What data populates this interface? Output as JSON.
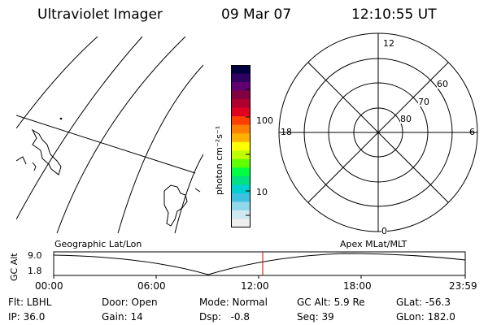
{
  "header": {
    "title": "Ultraviolet Imager",
    "date": "09 Mar 07",
    "time": "12:10:55 UT"
  },
  "colorbar": {
    "unit": "photon cm⁻²s⁻¹",
    "tick_100": "100",
    "tick_10": "10",
    "colors": [
      "#000040",
      "#300060",
      "#600070",
      "#800040",
      "#b00030",
      "#e00020",
      "#ff4000",
      "#ff8000",
      "#ffb000",
      "#ffff00",
      "#c0ff00",
      "#60ff00",
      "#00ff40",
      "#00e080",
      "#00d0d0",
      "#40c0e0",
      "#90d8e8",
      "#d0e8f0",
      "#eeeeee"
    ]
  },
  "polar_plot": {
    "label_12": "12",
    "label_18": "18",
    "label_6": "6",
    "label_0": "0",
    "lat_60": "60",
    "lat_70": "70",
    "lat_80": "80"
  },
  "timeline": {
    "y_axis_label": "GC Alt",
    "y_max": "9.0",
    "y_min": "1.8",
    "left_caption": "Geographic Lat/Lon",
    "right_caption": "Apex MLat/MLT",
    "x_ticks": [
      "00:00",
      "06:00",
      "12:00",
      "18:00",
      "23:59"
    ],
    "marker_time": "12:10:55",
    "marker_color": "#cc0000"
  },
  "status": {
    "flt": "Flt: LBHL",
    "ip": "IP: 36.0",
    "door": "Door: Open",
    "gain": "Gain: 14",
    "mode": "Mode: Normal",
    "dsp": "Dsp:   -0.8",
    "gc_alt": "GC Alt: 5.9 Re",
    "seq": "Seq: 39",
    "glat": "GLat: -56.3",
    "glon": "GLon: 182.0"
  }
}
